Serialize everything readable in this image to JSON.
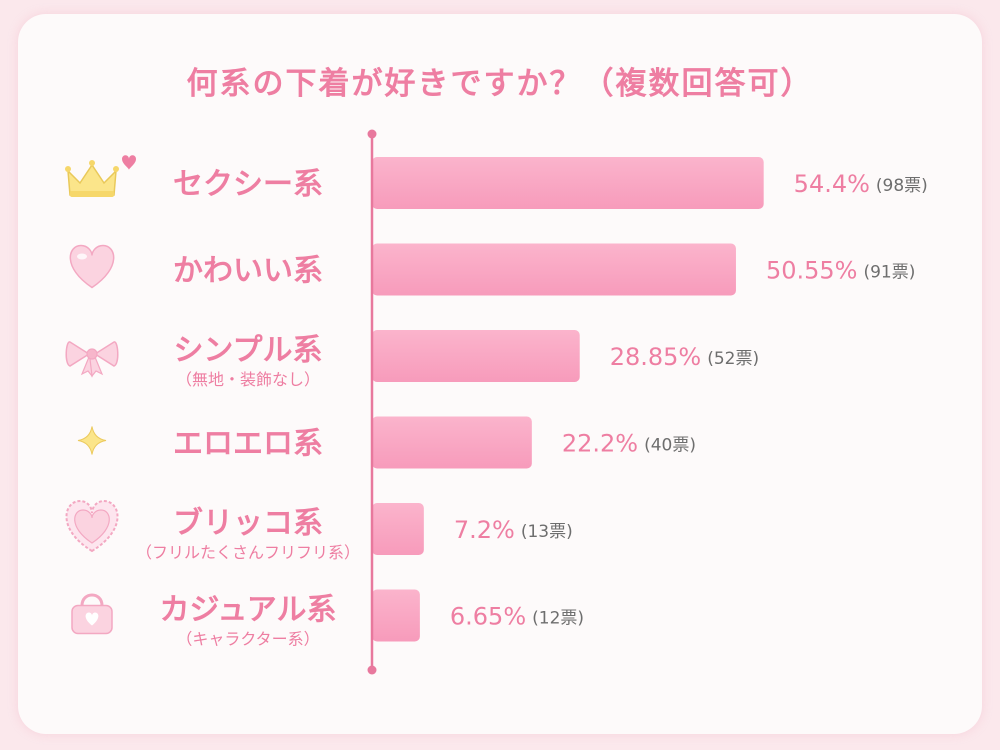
{
  "title": "何系の下着が好きですか？（複数回答可）",
  "colors": {
    "accent": "#ee7ea2",
    "bar": "#f9a5c1",
    "axis": "#e8789d",
    "background": "#fbe8ec",
    "card": "#fdfafa"
  },
  "chart_data": {
    "type": "bar",
    "orientation": "horizontal",
    "title": "何系の下着が好きですか？（複数回答可）",
    "categories": [
      "セクシー系",
      "かわいい系",
      "シンプル系",
      "エロエロ系",
      "ブリッコ系",
      "カジュアル系"
    ],
    "subtitles": [
      "",
      "",
      "（無地・装飾なし）",
      "",
      "（フリルたくさんフリフリ系）",
      "（キャラクター系）"
    ],
    "icons": [
      "crown-icon",
      "heart-icon",
      "ribbon-icon",
      "sparkle-icon",
      "frilly-heart-icon",
      "handbag-icon"
    ],
    "values": [
      54.4,
      50.55,
      28.85,
      22.2,
      7.2,
      6.65
    ],
    "value_labels": [
      "54.4%",
      "50.55%",
      "28.85%",
      "22.2%",
      "7.2%",
      "6.65%"
    ],
    "votes": [
      98,
      91,
      52,
      40,
      13,
      12
    ],
    "vote_labels": [
      "(98票)",
      "(91票)",
      "(52票)",
      "(40票)",
      "(13票)",
      "(12票)"
    ],
    "xlim": [
      0,
      100
    ],
    "grid": false,
    "legend": "none"
  }
}
